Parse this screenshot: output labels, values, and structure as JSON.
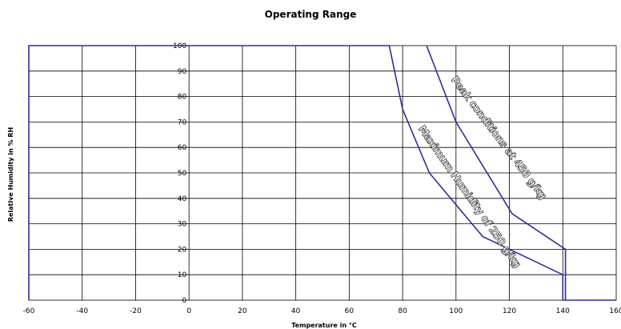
{
  "chart_data": {
    "type": "line",
    "title": "Operating Range",
    "xlabel": "Temperature in °C",
    "ylabel": "Relative Humidity in % RH",
    "xlim": [
      -60,
      160
    ],
    "ylim": [
      0,
      100
    ],
    "xticks": [
      -60,
      -40,
      -20,
      0,
      20,
      40,
      60,
      80,
      100,
      120,
      140,
      160
    ],
    "yticks": [
      0,
      10,
      20,
      30,
      40,
      50,
      60,
      70,
      80,
      90,
      100
    ],
    "grid": true,
    "legend": "none",
    "series": [
      {
        "points": [
          [
            -60,
            0
          ],
          [
            -60,
            100
          ],
          [
            75,
            100
          ],
          [
            80,
            75
          ],
          [
            90,
            50
          ],
          [
            110,
            25
          ],
          [
            140,
            10
          ],
          [
            140,
            0
          ],
          [
            160,
            0
          ]
        ]
      },
      {
        "points": [
          [
            89,
            100
          ],
          [
            100,
            70
          ],
          [
            121,
            34
          ],
          [
            141,
            20
          ],
          [
            141,
            0
          ]
        ]
      }
    ],
    "annotations": [
      {
        "text": "Peak conditions at 450 g/kg",
        "at": [
          115,
          63
        ],
        "angle": 53
      },
      {
        "text": "Maximum Humidity of 250 g/kg",
        "at": [
          104,
          40
        ],
        "angle": 55
      }
    ]
  },
  "colors": {
    "series": "#2e2e9a",
    "grid": "#000000"
  }
}
